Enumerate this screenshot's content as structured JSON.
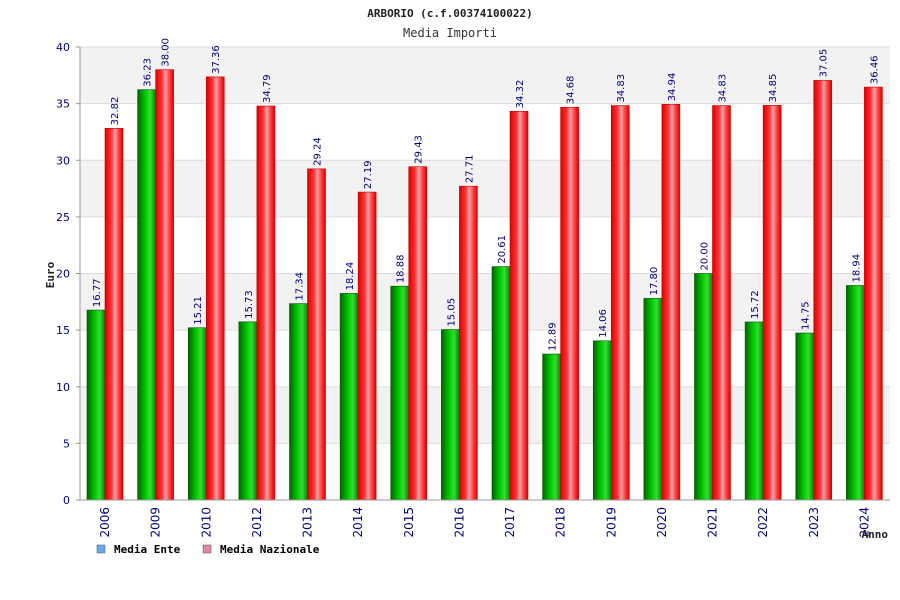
{
  "chart_data": {
    "type": "bar",
    "title": "ARBORIO (c.f.00374100022)",
    "subtitle": "Media Importi",
    "xlabel": "Anno",
    "ylabel": "Euro",
    "ylim": [
      0,
      40
    ],
    "yticks": [
      "0",
      "5",
      "10",
      "15",
      "20",
      "25",
      "30",
      "35",
      "40"
    ],
    "grid": true,
    "legend_position": "bottom-left",
    "categories": [
      "2006",
      "2009",
      "2010",
      "2012",
      "2013",
      "2014",
      "2015",
      "2016",
      "2017",
      "2018",
      "2019",
      "2020",
      "2021",
      "2022",
      "2023",
      "2024"
    ],
    "series": [
      {
        "name": "Media Ente",
        "color": "#00aa00",
        "legend_color": "#66aaee",
        "values": [
          16.77,
          36.23,
          15.21,
          15.73,
          17.34,
          18.24,
          18.88,
          15.05,
          20.61,
          12.89,
          14.06,
          17.8,
          20.0,
          15.72,
          14.75,
          18.94
        ],
        "labels": [
          "16.77",
          "36.23",
          "15.21",
          "15.73",
          "17.34",
          "18.24",
          "18.88",
          "15.05",
          "20.61",
          "12.89",
          "14.06",
          "17.80",
          "20.00",
          "15.72",
          "14.75",
          "18.94"
        ]
      },
      {
        "name": "Media Nazionale",
        "color": "#ee1111",
        "legend_color": "#dd88aa",
        "values": [
          32.82,
          38.0,
          37.36,
          34.79,
          29.24,
          27.19,
          29.43,
          27.71,
          34.32,
          34.68,
          34.83,
          34.94,
          34.83,
          34.85,
          37.05,
          36.46
        ],
        "labels": [
          "32.82",
          "38.00",
          "37.36",
          "34.79",
          "29.24",
          "27.19",
          "29.43",
          "27.71",
          "34.32",
          "34.68",
          "34.83",
          "34.94",
          "34.83",
          "34.85",
          "37.05",
          "36.46"
        ]
      }
    ]
  }
}
